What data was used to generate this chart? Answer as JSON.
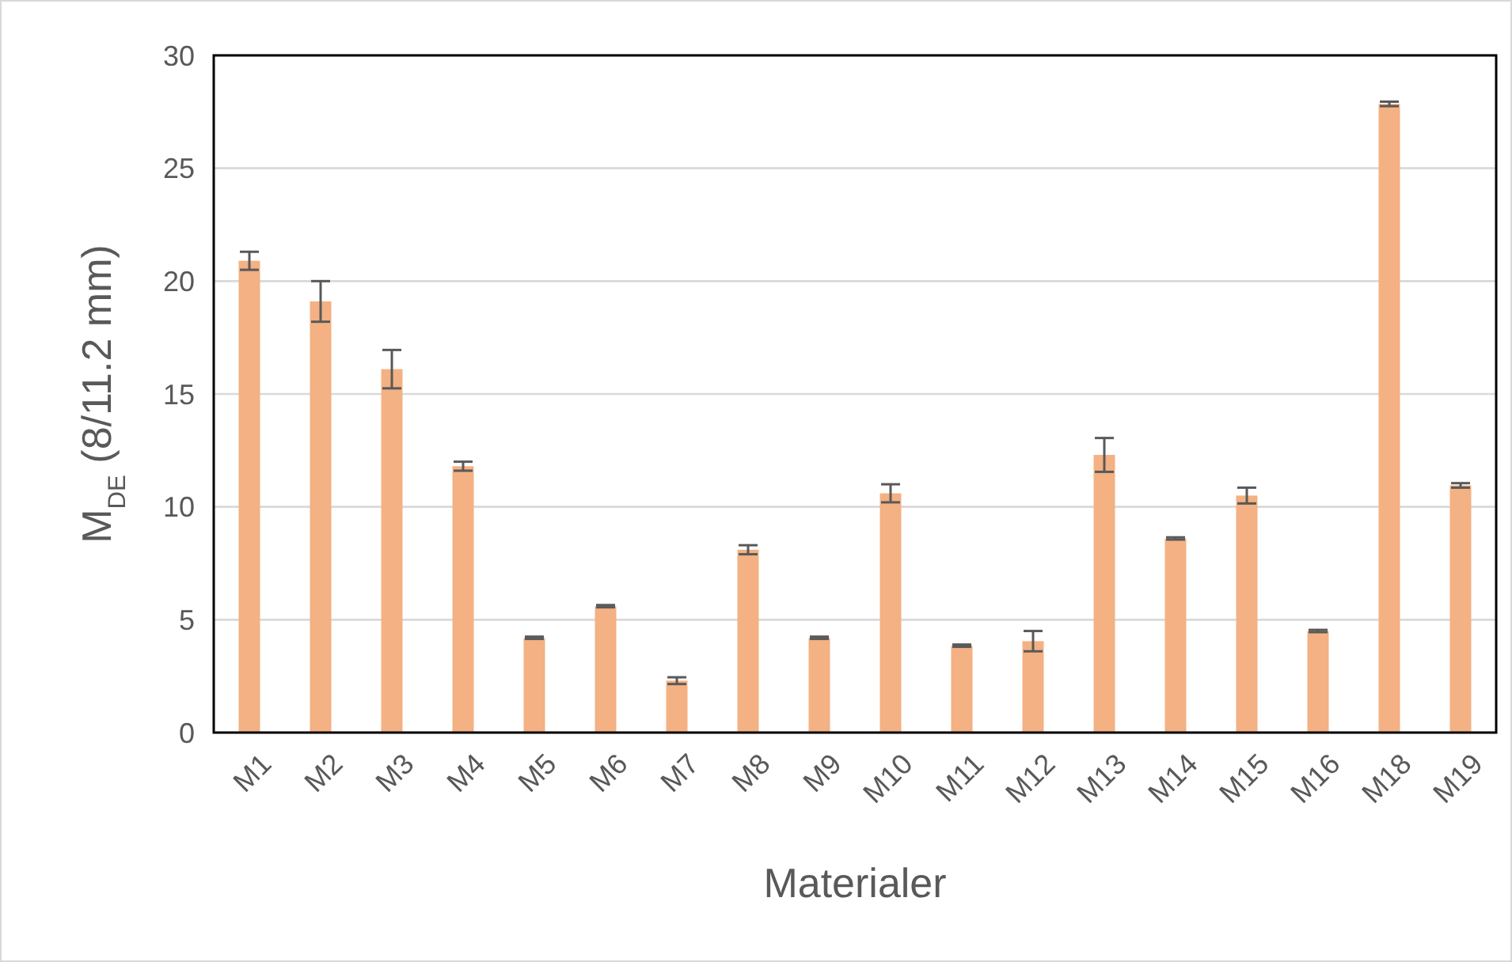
{
  "chart_data": {
    "type": "bar",
    "xlabel": "Materialer",
    "ylabel": "M$_{DE}$ (8/11.2 mm)",
    "categories": [
      "M1",
      "M2",
      "M3",
      "M4",
      "M5",
      "M6",
      "M7",
      "M8",
      "M9",
      "M10",
      "M11",
      "M12",
      "M13",
      "M14",
      "M15",
      "M16",
      "M18",
      "M19"
    ],
    "values": [
      20.9,
      19.1,
      16.1,
      11.8,
      4.2,
      5.6,
      2.3,
      8.1,
      4.2,
      10.6,
      3.85,
      4.05,
      12.3,
      8.6,
      10.5,
      4.5,
      27.85,
      10.95
    ],
    "errors": [
      0.4,
      0.9,
      0.85,
      0.2,
      0.05,
      0.05,
      0.15,
      0.2,
      0.05,
      0.4,
      0.05,
      0.45,
      0.75,
      0.05,
      0.35,
      0.05,
      0.1,
      0.1
    ],
    "color": "#f4b183",
    "ylim": [
      0,
      30
    ],
    "yticks": [
      0,
      5,
      10,
      15,
      20,
      25,
      30
    ],
    "grid": "y"
  }
}
